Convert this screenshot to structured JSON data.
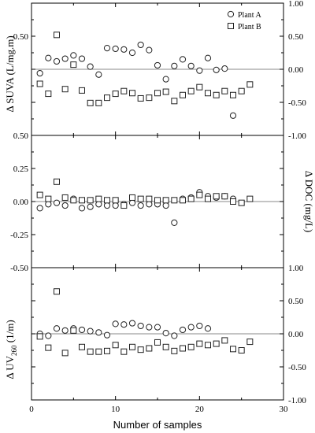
{
  "chart_data": [
    {
      "type": "scatter",
      "ylabel": "Δ SUVA (L/mg.m)",
      "xlim": [
        0,
        30
      ],
      "ylim": [
        -1.0,
        1.0
      ],
      "left_ticks": [
        "0.50"
      ],
      "right_ticks": [
        "1.00",
        "0.50",
        "0.00",
        "-0.50",
        "-1.00"
      ],
      "zero_line": true,
      "legend": {
        "position": "top-right",
        "entries": [
          {
            "name": "Plant A",
            "marker": "circle"
          },
          {
            "name": "Plant B",
            "marker": "square"
          }
        ]
      },
      "series": [
        {
          "name": "Plant A",
          "marker": "circle",
          "x": [
            1,
            2,
            3,
            4,
            5,
            6,
            7,
            8,
            9,
            10,
            11,
            12,
            13,
            14,
            15,
            16,
            17,
            18,
            19,
            20,
            21,
            22,
            23,
            24
          ],
          "y": [
            -0.06,
            0.17,
            0.12,
            0.16,
            0.21,
            0.16,
            0.04,
            -0.08,
            0.32,
            0.31,
            0.3,
            0.25,
            0.37,
            0.29,
            0.06,
            -0.15,
            0.05,
            0.15,
            0.05,
            -0.02,
            0.17,
            -0.01,
            0.01,
            -0.7
          ]
        },
        {
          "name": "Plant B",
          "marker": "square",
          "x": [
            1,
            2,
            3,
            4,
            5,
            6,
            7,
            8,
            9,
            10,
            11,
            12,
            13,
            14,
            15,
            16,
            17,
            18,
            19,
            20,
            21,
            22,
            23,
            24,
            25,
            26
          ],
          "y": [
            -0.22,
            -0.37,
            0.52,
            -0.3,
            0.07,
            -0.32,
            -0.51,
            -0.51,
            -0.43,
            -0.37,
            -0.33,
            -0.36,
            -0.44,
            -0.43,
            -0.36,
            -0.34,
            -0.48,
            -0.39,
            -0.33,
            -0.27,
            -0.36,
            -0.39,
            -0.33,
            -0.39,
            -0.33,
            -0.23
          ]
        }
      ]
    },
    {
      "type": "scatter",
      "ylabel": "Δ DOC (mg/L)",
      "xlim": [
        0,
        30
      ],
      "ylim": [
        -0.5,
        0.5
      ],
      "left_ticks": [
        "0.50",
        "0.25",
        "0.00",
        "-0.25",
        "-0.50"
      ],
      "right_ticks": [],
      "zero_line": true,
      "series": [
        {
          "name": "Plant A",
          "marker": "circle",
          "x": [
            1,
            2,
            3,
            4,
            5,
            6,
            7,
            8,
            9,
            10,
            11,
            12,
            13,
            14,
            15,
            16,
            17,
            18,
            19,
            20,
            21,
            22,
            23,
            24
          ],
          "y": [
            -0.05,
            -0.02,
            -0.01,
            -0.03,
            0.02,
            -0.05,
            -0.04,
            -0.02,
            -0.03,
            -0.03,
            -0.02,
            -0.01,
            -0.03,
            -0.02,
            -0.02,
            -0.03,
            -0.16,
            0.02,
            0.03,
            0.07,
            0.04,
            0.03,
            0.04,
            0.02
          ]
        },
        {
          "name": "Plant B",
          "marker": "square",
          "x": [
            1,
            2,
            3,
            4,
            5,
            6,
            7,
            8,
            9,
            10,
            11,
            12,
            13,
            14,
            15,
            16,
            17,
            18,
            19,
            20,
            21,
            22,
            23,
            24,
            25,
            26
          ],
          "y": [
            0.05,
            0.02,
            0.15,
            0.03,
            0.01,
            0.01,
            0.01,
            0.02,
            0.01,
            0.01,
            -0.03,
            0.03,
            0.02,
            0.02,
            0.01,
            0.01,
            0.01,
            0.01,
            0.02,
            0.05,
            0.02,
            0.04,
            0.04,
            0.0,
            -0.01,
            0.02
          ]
        }
      ]
    },
    {
      "type": "scatter",
      "ylabel": "Δ UV260 (1/m)",
      "ylabel_main": "Δ UV",
      "ylabel_sub": "260",
      "ylabel_unit": " (1/m)",
      "xlabel": "Number of samples",
      "xlim": [
        0,
        30
      ],
      "ylim": [
        -1.0,
        1.0
      ],
      "x_ticks": [
        "0",
        "10",
        "20",
        "30"
      ],
      "left_ticks": [],
      "right_ticks": [
        "1.00",
        "0.50",
        "0.00",
        "-0.50",
        "-1.00"
      ],
      "zero_line": true,
      "series": [
        {
          "name": "Plant A",
          "marker": "circle",
          "x": [
            1,
            2,
            3,
            4,
            5,
            6,
            7,
            8,
            9,
            10,
            11,
            12,
            13,
            14,
            15,
            16,
            17,
            18,
            19,
            20,
            21
          ],
          "y": [
            0.0,
            -0.03,
            0.08,
            0.05,
            0.08,
            0.06,
            0.04,
            0.02,
            -0.02,
            0.15,
            0.14,
            0.16,
            0.12,
            0.1,
            0.1,
            0.01,
            -0.03,
            0.06,
            0.1,
            0.12,
            0.08
          ]
        },
        {
          "name": "Plant B",
          "marker": "square",
          "x": [
            1,
            2,
            3,
            4,
            5,
            6,
            7,
            8,
            9,
            10,
            11,
            12,
            13,
            14,
            15,
            16,
            17,
            18,
            19,
            20,
            21,
            22,
            23,
            24,
            25,
            26
          ],
          "y": [
            -0.04,
            -0.21,
            0.64,
            -0.29,
            0.05,
            -0.2,
            -0.27,
            -0.27,
            -0.26,
            -0.17,
            -0.27,
            -0.2,
            -0.24,
            -0.22,
            -0.13,
            -0.2,
            -0.26,
            -0.22,
            -0.2,
            -0.15,
            -0.17,
            -0.15,
            -0.1,
            -0.23,
            -0.25,
            -0.12
          ]
        }
      ]
    }
  ]
}
